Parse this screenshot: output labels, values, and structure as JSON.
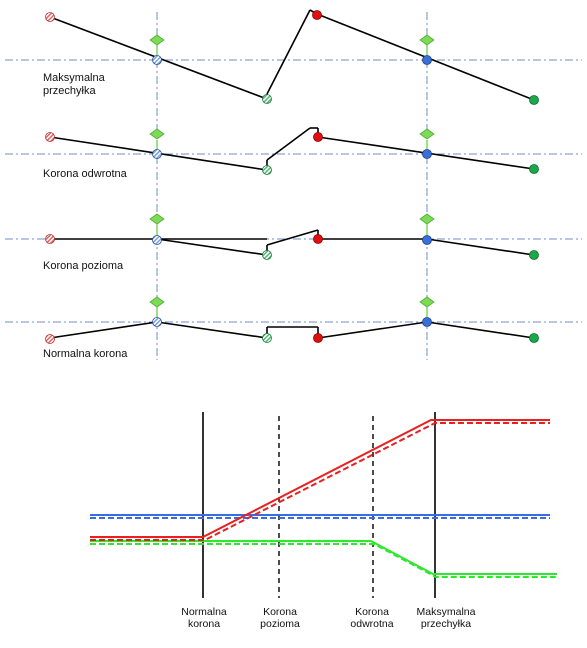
{
  "colors": {
    "background": "#ffffff",
    "line": "#000000",
    "axis_dashdot": "#6b8fc7",
    "red_point": "#e01010",
    "blue_point": "#3a6fd8",
    "green_point": "#1aa84a",
    "striped_red": "#e06666",
    "striped_blue": "#7aa2dc",
    "striped_green": "#55b877",
    "hinge_marker": "#7ed957",
    "chart_red": "#e82020",
    "chart_blue": "#3a6ee0",
    "chart_green": "#2ee82e"
  },
  "profiles": [
    {
      "id": "max",
      "label_lines": [
        "Maksymalna",
        "przechyłka"
      ]
    },
    {
      "id": "rev",
      "label_lines": [
        "Korona odwrotna"
      ]
    },
    {
      "id": "flat",
      "label_lines": [
        "Korona pozioma"
      ]
    },
    {
      "id": "normal",
      "label_lines": [
        "Normalna korona"
      ]
    }
  ],
  "chart": {
    "stations": [
      {
        "label_lines": [
          "Normalna",
          "korona"
        ],
        "style": "solid"
      },
      {
        "label_lines": [
          "Korona",
          "pozioma"
        ],
        "style": "dashed"
      },
      {
        "label_lines": [
          "Korona",
          "odwrotna"
        ],
        "style": "dashed"
      },
      {
        "label_lines": [
          "Maksymalna",
          "przechyłka"
        ],
        "style": "solid"
      }
    ],
    "series": [
      {
        "color": "red",
        "shape": "constant - linear rise - constant"
      },
      {
        "color": "blue",
        "shape": "constant"
      },
      {
        "color": "green",
        "shape": "constant - linear drop - constant"
      }
    ]
  }
}
